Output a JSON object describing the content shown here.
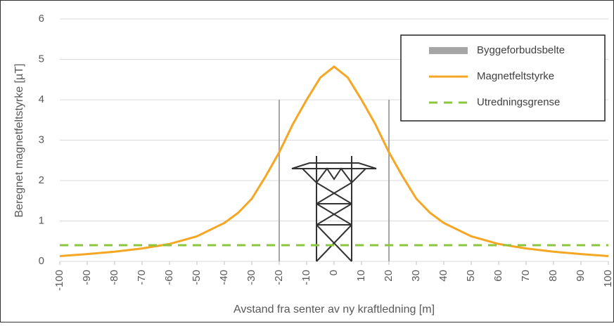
{
  "chart_data": {
    "type": "line",
    "xlabel": "Avstand fra senter av ny kraftledning [m]",
    "ylabel": "Beregnet magnetfeltstyrke [µT]",
    "xlim": [
      -100,
      100
    ],
    "xticks": [
      -100,
      -90,
      -80,
      -70,
      -60,
      -50,
      -40,
      -30,
      -20,
      -10,
      0,
      10,
      20,
      30,
      40,
      50,
      60,
      70,
      80,
      90,
      100
    ],
    "ylim": [
      0,
      6
    ],
    "yticks": [
      0,
      1,
      2,
      3,
      4,
      5,
      6
    ],
    "grid": true,
    "legend": "upper right",
    "series": [
      {
        "name": "Byggeforbudsbelte",
        "color": "#a6a6a6",
        "x": [
          -20,
          20
        ],
        "values": [
          4,
          4
        ]
      },
      {
        "name": "Magnetfeltstyrke",
        "color": "#f5a623",
        "x": [
          -100,
          -90,
          -80,
          -70,
          -60,
          -50,
          -40,
          -35,
          -30,
          -25,
          -20,
          -15,
          -10,
          -5,
          0,
          5,
          10,
          15,
          20,
          25,
          30,
          35,
          40,
          50,
          60,
          70,
          80,
          90,
          100
        ],
        "values": [
          0.13,
          0.18,
          0.24,
          0.32,
          0.43,
          0.62,
          0.95,
          1.2,
          1.55,
          2.1,
          2.7,
          3.4,
          4.0,
          4.55,
          4.82,
          4.55,
          4.0,
          3.4,
          2.7,
          2.1,
          1.55,
          1.2,
          0.95,
          0.62,
          0.43,
          0.32,
          0.24,
          0.18,
          0.13
        ]
      },
      {
        "name": "Utredningsgrense",
        "color": "#8cc63f",
        "values": [
          0.4
        ]
      }
    ]
  }
}
